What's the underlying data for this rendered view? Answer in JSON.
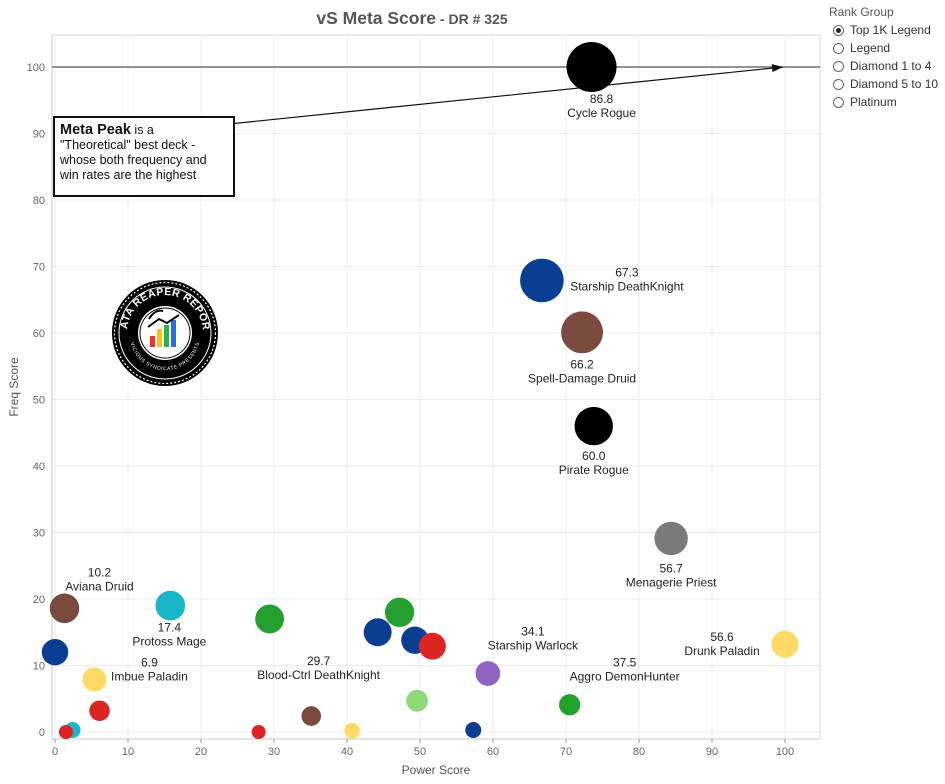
{
  "title_main": "vS Meta Score",
  "title_sub": " - DR # 325",
  "legend": {
    "title": "Rank Group",
    "items": [
      {
        "label": "Top 1K Legend",
        "checked": true
      },
      {
        "label": "Legend",
        "checked": false
      },
      {
        "label": "Diamond 1 to 4",
        "checked": false
      },
      {
        "label": "Diamond 5 to 10",
        "checked": false
      },
      {
        "label": "Platinum",
        "checked": false
      }
    ]
  },
  "annotation": {
    "bold": "Meta Peak",
    "text": " is a \"Theoretical\" best deck - whose both frequency and win rates are the highest"
  },
  "logo": {
    "top_text": "DATA REAPER REPORT",
    "bottom_text": "VICIOUS SYNDICATE PRESENTS"
  },
  "chart_data": {
    "type": "scatter",
    "title": "vS Meta Score - DR # 325",
    "xlabel": "Power Score",
    "ylabel": "Freq Score",
    "xlim": [
      -1,
      105
    ],
    "ylim": [
      -1,
      105
    ],
    "xticks": [
      0,
      10,
      20,
      30,
      40,
      50,
      60,
      70,
      80,
      90,
      100
    ],
    "yticks": [
      0,
      10,
      20,
      30,
      40,
      50,
      60,
      70,
      80,
      90,
      100
    ],
    "grid": true,
    "legend_position": "top-right",
    "reference_line_y": 100,
    "arrow": {
      "from": [
        24.5,
        91.5
      ],
      "to": [
        100,
        100
      ]
    },
    "points": [
      {
        "x": 73.5,
        "y": 100,
        "color": "#000000",
        "label": "Cycle Rogue",
        "value": "86.8"
      },
      {
        "x": 66.7,
        "y": 67.9,
        "color": "#0b3e93",
        "label": "Starship DeathKnight",
        "value": "67.3"
      },
      {
        "x": 72.2,
        "y": 60.1,
        "color": "#7b4a3e",
        "label": "Spell-Damage Druid",
        "value": "66.2"
      },
      {
        "x": 73.8,
        "y": 46,
        "color": "#000000",
        "label": "Pirate Rogue",
        "value": "60.0"
      },
      {
        "x": 84.4,
        "y": 29.1,
        "color": "#7a7a7a",
        "label": "Menagerie Priest",
        "value": "56.7"
      },
      {
        "x": 100,
        "y": 13.2,
        "color": "#ffda66",
        "label": "Drunk Paladin",
        "value": "56.6"
      },
      {
        "x": 70.5,
        "y": 4.1,
        "color": "#24a02f",
        "label": "Aggro DemonHunter",
        "value": "37.5"
      },
      {
        "x": 59.3,
        "y": 8.8,
        "color": "#8f63c2",
        "label": "Starship Warlock",
        "value": "34.1"
      },
      {
        "x": 29.4,
        "y": 17,
        "color": "#24a02f",
        "label": "Blood-Ctrl DeathKnight",
        "value": "29.7"
      },
      {
        "x": 15.8,
        "y": 19,
        "color": "#19b5c9",
        "label": "Protoss Mage",
        "value": "17.4"
      },
      {
        "x": 1.3,
        "y": 18.6,
        "color": "#7b4a3e",
        "label": "Aviana Druid",
        "value": "10.2"
      },
      {
        "x": 5.4,
        "y": 7.9,
        "color": "#ffda66",
        "label": "Imbue Paladin",
        "value": "6.9"
      },
      {
        "x": 47.2,
        "y": 18,
        "color": "#24a02f"
      },
      {
        "x": 44.2,
        "y": 15,
        "color": "#0b3e93"
      },
      {
        "x": 49.3,
        "y": 13.8,
        "color": "#0b3e93"
      },
      {
        "x": 51.7,
        "y": 12.9,
        "color": "#dc2423"
      },
      {
        "x": 49.6,
        "y": 4.7,
        "color": "#8fda78"
      },
      {
        "x": 35.1,
        "y": 2.4,
        "color": "#7b4a3e"
      },
      {
        "x": 40.7,
        "y": 0.2,
        "color": "#ffda66"
      },
      {
        "x": 57.3,
        "y": 0.3,
        "color": "#0b3e93"
      },
      {
        "x": 27.9,
        "y": 0,
        "color": "#dc2423"
      },
      {
        "x": 6.1,
        "y": 3.2,
        "color": "#dc2423"
      },
      {
        "x": 0,
        "y": 12,
        "color": "#0b3e93"
      },
      {
        "x": 2.4,
        "y": 0.3,
        "color": "#19b5c9"
      },
      {
        "x": 1.5,
        "y": 0,
        "color": "#dc2423"
      }
    ]
  }
}
